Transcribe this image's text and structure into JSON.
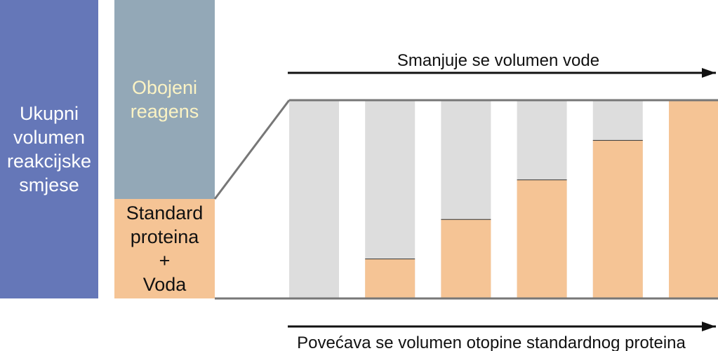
{
  "left_blocks": {
    "total_label": [
      "Ukupni",
      "volumen",
      "reakcijske",
      "smjese"
    ],
    "reagent_label": [
      "Obojeni",
      "reagens"
    ],
    "standard_label": [
      "Standard",
      "proteina",
      "+",
      "Voda"
    ]
  },
  "arrows": {
    "top_text": "Smanjuje se volumen vode",
    "bottom_text": "Povećava se volumen otopine standardnog proteina"
  },
  "tubes": {
    "fill_fraction": [
      0,
      0.2,
      0.4,
      0.6,
      0.8,
      1.0
    ]
  },
  "colors": {
    "total": "#6577b8",
    "reagent": "#93a8b7",
    "standard": "#f5c495",
    "water": "#dddddd"
  }
}
